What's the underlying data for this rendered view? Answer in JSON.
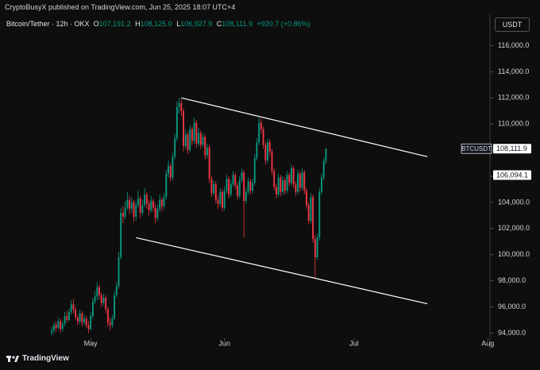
{
  "header": {
    "publisher": "CryptoBusyX published on TradingView.com, Jun 25, 2025 18:07 UTC+4"
  },
  "footer": {
    "brand": "TradingView"
  },
  "currency_button": "USDT",
  "legend": {
    "symbol": "Bitcoin/Tether · 12h · OKX",
    "prefixes": [
      "O",
      "H",
      "L",
      "C"
    ],
    "ohlc_labels": [
      "107,191.2",
      "108,125.0",
      "106,927.9",
      "108,111.9"
    ],
    "change_label": "+920.7 (+0.86%)"
  },
  "chart_data": {
    "type": "candlestick",
    "up_color": "#089981",
    "down_color": "#f23645",
    "ylim": [
      93600,
      118400
    ],
    "yticks": [
      {
        "value": 94000,
        "label": "94,000.0"
      },
      {
        "value": 96000,
        "label": "96,000.0"
      },
      {
        "value": 98000,
        "label": "98,000.0"
      },
      {
        "value": 100000,
        "label": "100,000.0"
      },
      {
        "value": 102000,
        "label": "102,000.0"
      },
      {
        "value": 104000,
        "label": "104,000.0"
      },
      {
        "value": 106000,
        "label": "106,000.0"
      },
      {
        "value": 108000,
        "label": "108,000.0"
      },
      {
        "value": 110000,
        "label": "110,000.0"
      },
      {
        "value": 112000,
        "label": "112,000.0"
      },
      {
        "value": 114000,
        "label": "114,000.0"
      },
      {
        "value": 116000,
        "label": "116,000.0"
      }
    ],
    "xlim": [
      -24,
      203
    ],
    "xticks": [
      {
        "value": 18,
        "label": "May"
      },
      {
        "value": 80,
        "label": "Jun"
      },
      {
        "value": 140,
        "label": "Jul"
      },
      {
        "value": 202,
        "label": "Aug"
      }
    ],
    "candles": [
      [
        94000,
        94500,
        93800,
        94200
      ],
      [
        94200,
        94800,
        94000,
        94600
      ],
      [
        94600,
        94900,
        94100,
        94400
      ],
      [
        94400,
        95200,
        94300,
        94900
      ],
      [
        94900,
        95100,
        94000,
        94300
      ],
      [
        94300,
        94900,
        94100,
        94700
      ],
      [
        94700,
        95600,
        94500,
        95300
      ],
      [
        95300,
        95700,
        94800,
        95000
      ],
      [
        95000,
        95900,
        94900,
        95600
      ],
      [
        95600,
        96500,
        95400,
        96200
      ],
      [
        96200,
        96600,
        95500,
        95800
      ],
      [
        95800,
        96000,
        95000,
        95200
      ],
      [
        95200,
        95400,
        94600,
        94900
      ],
      [
        94900,
        95800,
        94700,
        95500
      ],
      [
        95500,
        95700,
        94500,
        94800
      ],
      [
        94800,
        95400,
        94600,
        95100
      ],
      [
        95100,
        95300,
        94400,
        94600
      ],
      [
        94600,
        94900,
        94000,
        94300
      ],
      [
        94300,
        95600,
        94200,
        95300
      ],
      [
        95300,
        96700,
        95100,
        96400
      ],
      [
        96400,
        97200,
        96200,
        96800
      ],
      [
        96800,
        97900,
        96500,
        97500
      ],
      [
        97500,
        97700,
        96600,
        96900
      ],
      [
        96900,
        97100,
        96000,
        96300
      ],
      [
        96300,
        97000,
        96100,
        96700
      ],
      [
        96700,
        96900,
        95500,
        95800
      ],
      [
        95800,
        96000,
        94500,
        94800
      ],
      [
        94800,
        95200,
        94200,
        94600
      ],
      [
        94600,
        95400,
        94400,
        95100
      ],
      [
        95100,
        97200,
        95000,
        96900
      ],
      [
        96900,
        97900,
        96700,
        97600
      ],
      [
        97600,
        100200,
        97400,
        99800
      ],
      [
        99800,
        103600,
        99600,
        103200
      ],
      [
        103200,
        103700,
        102400,
        102900
      ],
      [
        102900,
        104100,
        102700,
        103600
      ],
      [
        103600,
        104800,
        103400,
        104200
      ],
      [
        104200,
        104500,
        103100,
        103500
      ],
      [
        103500,
        104400,
        103200,
        104000
      ],
      [
        104000,
        104200,
        102500,
        102900
      ],
      [
        102900,
        104100,
        102600,
        103800
      ],
      [
        103800,
        104900,
        103600,
        104300
      ],
      [
        104300,
        104500,
        102800,
        103200
      ],
      [
        103200,
        104200,
        103000,
        103800
      ],
      [
        103800,
        105100,
        103600,
        104600
      ],
      [
        104600,
        104800,
        103500,
        103900
      ],
      [
        103900,
        104200,
        103000,
        103400
      ],
      [
        103400,
        104500,
        103200,
        104100
      ],
      [
        104100,
        104300,
        103300,
        103600
      ],
      [
        103600,
        103900,
        102400,
        102800
      ],
      [
        102800,
        103800,
        102600,
        103500
      ],
      [
        103500,
        104600,
        103300,
        104200
      ],
      [
        104200,
        104400,
        103300,
        103700
      ],
      [
        103700,
        104700,
        103500,
        104400
      ],
      [
        104400,
        106500,
        104200,
        106200
      ],
      [
        106200,
        107200,
        105900,
        106800
      ],
      [
        106800,
        107000,
        105600,
        105900
      ],
      [
        105900,
        107800,
        105700,
        107500
      ],
      [
        107500,
        109300,
        107300,
        108900
      ],
      [
        108900,
        111700,
        108700,
        111300
      ],
      [
        111300,
        112000,
        110800,
        111600
      ],
      [
        111600,
        111900,
        110600,
        111000
      ],
      [
        111000,
        111200,
        107900,
        108300
      ],
      [
        108300,
        109600,
        108100,
        109200
      ],
      [
        109200,
        109400,
        107700,
        108000
      ],
      [
        108000,
        109900,
        107800,
        109600
      ],
      [
        109600,
        109800,
        108400,
        108700
      ],
      [
        108700,
        110500,
        108500,
        110100
      ],
      [
        110100,
        110300,
        108200,
        108500
      ],
      [
        108500,
        109700,
        108300,
        109300
      ],
      [
        109300,
        109500,
        108100,
        108400
      ],
      [
        108400,
        109300,
        108200,
        109000
      ],
      [
        109000,
        109200,
        107300,
        107600
      ],
      [
        107600,
        108500,
        107400,
        108200
      ],
      [
        108200,
        108400,
        105500,
        105800
      ],
      [
        105800,
        106000,
        104400,
        104700
      ],
      [
        104700,
        105700,
        104500,
        105400
      ],
      [
        105400,
        105600,
        103900,
        104200
      ],
      [
        104200,
        104500,
        103500,
        103900
      ],
      [
        103900,
        105100,
        103700,
        104800
      ],
      [
        104800,
        105000,
        103300,
        103600
      ],
      [
        103600,
        105200,
        103400,
        104900
      ],
      [
        104900,
        106100,
        104700,
        105800
      ],
      [
        105800,
        106000,
        104300,
        104600
      ],
      [
        104600,
        105700,
        104400,
        105400
      ],
      [
        105400,
        106400,
        105200,
        106100
      ],
      [
        106100,
        106300,
        105000,
        105300
      ],
      [
        105300,
        105500,
        104200,
        104500
      ],
      [
        104500,
        106000,
        104300,
        105700
      ],
      [
        105700,
        106600,
        105500,
        106300
      ],
      [
        106300,
        106500,
        101300,
        104100
      ],
      [
        104100,
        105100,
        103900,
        104800
      ],
      [
        104800,
        105900,
        104600,
        105600
      ],
      [
        105600,
        105800,
        104600,
        104900
      ],
      [
        104900,
        105800,
        104700,
        105500
      ],
      [
        105500,
        107700,
        105300,
        107400
      ],
      [
        107400,
        108900,
        107200,
        108600
      ],
      [
        108600,
        110500,
        108400,
        110100
      ],
      [
        110100,
        110400,
        109300,
        109600
      ],
      [
        109600,
        109800,
        108100,
        108400
      ],
      [
        108400,
        108600,
        106900,
        107200
      ],
      [
        107200,
        108900,
        107000,
        108600
      ],
      [
        108600,
        108800,
        107600,
        107900
      ],
      [
        107900,
        108100,
        106100,
        106400
      ],
      [
        106400,
        106600,
        104900,
        105200
      ],
      [
        105200,
        105400,
        104300,
        104600
      ],
      [
        104600,
        106200,
        104400,
        105900
      ],
      [
        105900,
        106100,
        104500,
        104800
      ],
      [
        104800,
        106000,
        104600,
        105700
      ],
      [
        105700,
        105900,
        104600,
        104900
      ],
      [
        104900,
        106400,
        104700,
        106100
      ],
      [
        106100,
        106300,
        105200,
        105500
      ],
      [
        105500,
        106900,
        105300,
        106600
      ],
      [
        106600,
        106800,
        105100,
        105400
      ],
      [
        105400,
        105600,
        104500,
        104800
      ],
      [
        104800,
        106500,
        104600,
        106200
      ],
      [
        106200,
        106400,
        104800,
        105100
      ],
      [
        105100,
        106600,
        104900,
        106300
      ],
      [
        106300,
        106500,
        104600,
        104900
      ],
      [
        104900,
        105100,
        103500,
        103800
      ],
      [
        103800,
        104000,
        102300,
        102600
      ],
      [
        102600,
        104700,
        102400,
        104400
      ],
      [
        104400,
        104600,
        100900,
        101200
      ],
      [
        101200,
        101500,
        98200,
        99800
      ],
      [
        99800,
        101600,
        99600,
        101300
      ],
      [
        101300,
        105100,
        101100,
        104800
      ],
      [
        104800,
        106200,
        104600,
        105900
      ],
      [
        105900,
        107400,
        105700,
        107191.2
      ],
      [
        107191.2,
        108125.0,
        106927.9,
        108111.9
      ]
    ],
    "trendlines": [
      {
        "x": [
          60,
          174
        ],
        "y": [
          112000,
          107500
        ],
        "color": "#ffffff"
      },
      {
        "x": [
          39,
          174
        ],
        "y": [
          101300,
          96240
        ],
        "color": "#ffffff"
      }
    ],
    "price_labels": [
      {
        "name": "BTCUSDT",
        "value": 108111.9,
        "label": "108,111.9"
      },
      {
        "value": 106094.1,
        "label": "106,094.1"
      }
    ]
  }
}
